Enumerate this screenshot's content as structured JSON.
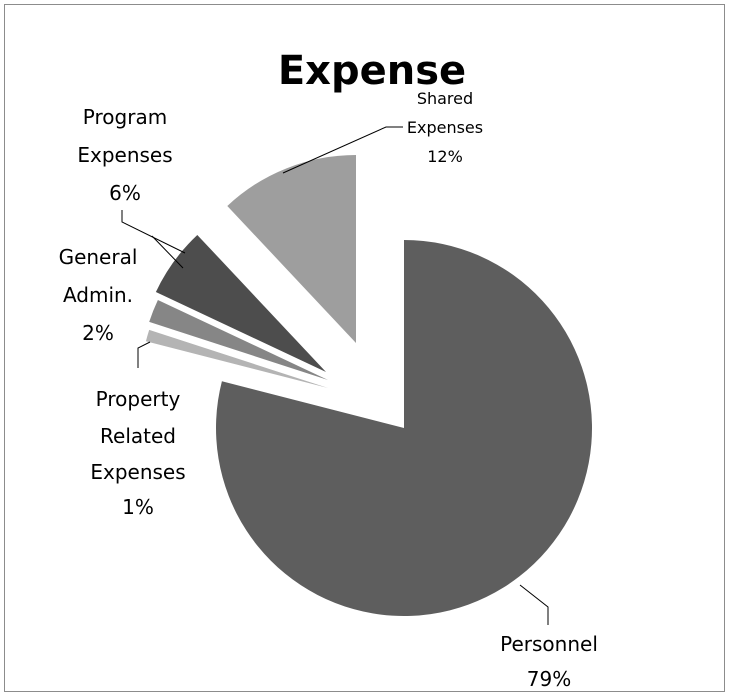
{
  "chart_data": {
    "type": "pie",
    "title": "Expense",
    "exploded": true,
    "slices": [
      {
        "name": "Personnel",
        "value": 79,
        "label": "79%",
        "color": "#5e5e5e"
      },
      {
        "name": "Property Related Expenses",
        "value": 1,
        "label": "1%",
        "color": "#b4b4b4"
      },
      {
        "name": "General Admin.",
        "value": 2,
        "label": "2%",
        "color": "#868686"
      },
      {
        "name": "Program Expenses",
        "value": 6,
        "label": "6%",
        "color": "#4d4d4d"
      },
      {
        "name": "Shared Expenses",
        "value": 12,
        "label": "12%",
        "color": "#9e9e9e"
      }
    ],
    "labels": {
      "personnel": {
        "lines": [
          "Personnel",
          "79%"
        ]
      },
      "property": {
        "lines": [
          "Property",
          "Related",
          "Expenses",
          "1%"
        ]
      },
      "general": {
        "lines": [
          "General",
          "Admin.",
          "2%"
        ]
      },
      "program": {
        "lines": [
          "Program",
          "Expenses",
          "6%"
        ]
      },
      "shared": {
        "lines": [
          "Shared",
          "Expenses",
          "12%"
        ]
      }
    }
  }
}
